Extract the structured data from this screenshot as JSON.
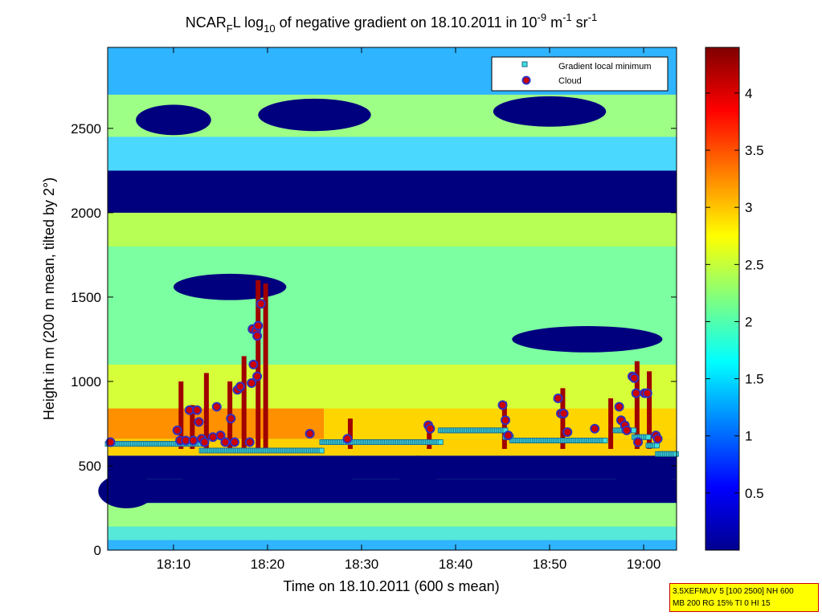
{
  "chart_data": {
    "type": "heatmap",
    "title": {
      "p1": "NCAR",
      "p1_sub": "F",
      "p2": "L log",
      "p2_sub": "10",
      "p3": " of negative gradient on 18.10.2011 in 10",
      "p3_sup": "-9",
      "p4": " m",
      "p4_sup": "-1",
      "p5": " sr",
      "p5_sup": "-1"
    },
    "xlabel": "Time on 18.10.2011 (600 s mean)",
    "ylabel": "Height in m (200 m mean, tilted by 2°)",
    "x_range_min": [
      3,
      63.5
    ],
    "y_range_m": [
      0,
      2980
    ],
    "x_tick_labels": [
      "18:10",
      "18:20",
      "18:30",
      "18:40",
      "18:50",
      "19:00"
    ],
    "x_tick_values_min": [
      10,
      20,
      30,
      40,
      50,
      60
    ],
    "y_ticks": [
      0,
      500,
      1000,
      1500,
      2000,
      2500
    ],
    "colorbar": {
      "range": [
        0,
        4.4
      ],
      "ticks": [
        0.5,
        1,
        1.5,
        2,
        2.5,
        3,
        3.5,
        4
      ],
      "tick_labels": [
        "0.5",
        "1",
        "1.5",
        "2",
        "2.5",
        "3",
        "3.5",
        "4"
      ],
      "colormap": "jet"
    },
    "legend": {
      "placement": "top-right",
      "entries": [
        {
          "label": "Gradient local minimum",
          "marker": "square",
          "color": "#40e0e0"
        },
        {
          "label": "Cloud",
          "marker": "circle",
          "color": "#cc0000",
          "edge": "#3030c0"
        }
      ]
    },
    "gradient_local_minimum_segments": [
      {
        "t0": 3.0,
        "t1": 13.0,
        "h": 630
      },
      {
        "t0": 13.0,
        "t1": 25.8,
        "h": 590
      },
      {
        "t0": 25.8,
        "t1": 38.4,
        "h": 640
      },
      {
        "t0": 38.4,
        "t1": 45.3,
        "h": 710
      },
      {
        "t0": 45.3,
        "t1": 46.0,
        "h": 670
      },
      {
        "t0": 46.0,
        "t1": 56.0,
        "h": 650
      },
      {
        "t0": 57.0,
        "t1": 59.0,
        "h": 710
      },
      {
        "t0": 59.0,
        "t1": 60.5,
        "h": 670
      },
      {
        "t0": 60.5,
        "t1": 61.5,
        "h": 620
      },
      {
        "t0": 61.5,
        "t1": 63.5,
        "h": 570
      }
    ],
    "clouds": [
      {
        "t": 3.3,
        "h": 640
      },
      {
        "t": 10.4,
        "h": 710
      },
      {
        "t": 10.7,
        "h": 650
      },
      {
        "t": 11.3,
        "h": 650
      },
      {
        "t": 11.7,
        "h": 830
      },
      {
        "t": 12.1,
        "h": 650
      },
      {
        "t": 12.5,
        "h": 830
      },
      {
        "t": 12.7,
        "h": 760
      },
      {
        "t": 13.0,
        "h": 660
      },
      {
        "t": 13.3,
        "h": 640
      },
      {
        "t": 14.2,
        "h": 670
      },
      {
        "t": 14.6,
        "h": 850
      },
      {
        "t": 15.0,
        "h": 680
      },
      {
        "t": 15.5,
        "h": 640
      },
      {
        "t": 16.1,
        "h": 780
      },
      {
        "t": 16.5,
        "h": 640
      },
      {
        "t": 16.8,
        "h": 950
      },
      {
        "t": 17.1,
        "h": 970
      },
      {
        "t": 18.1,
        "h": 640
      },
      {
        "t": 18.3,
        "h": 990
      },
      {
        "t": 18.4,
        "h": 1310
      },
      {
        "t": 18.5,
        "h": 1100
      },
      {
        "t": 18.8,
        "h": 1300
      },
      {
        "t": 18.9,
        "h": 1030
      },
      {
        "t": 18.9,
        "h": 1270
      },
      {
        "t": 19.0,
        "h": 1330
      },
      {
        "t": 19.3,
        "h": 1460
      },
      {
        "t": 24.5,
        "h": 690
      },
      {
        "t": 28.5,
        "h": 660
      },
      {
        "t": 37.1,
        "h": 740
      },
      {
        "t": 37.3,
        "h": 720
      },
      {
        "t": 45.0,
        "h": 860
      },
      {
        "t": 45.3,
        "h": 770
      },
      {
        "t": 45.6,
        "h": 680
      },
      {
        "t": 50.9,
        "h": 900
      },
      {
        "t": 51.2,
        "h": 810
      },
      {
        "t": 51.5,
        "h": 810
      },
      {
        "t": 51.9,
        "h": 700
      },
      {
        "t": 54.8,
        "h": 720
      },
      {
        "t": 57.4,
        "h": 850
      },
      {
        "t": 57.6,
        "h": 770
      },
      {
        "t": 58.0,
        "h": 740
      },
      {
        "t": 58.2,
        "h": 710
      },
      {
        "t": 58.8,
        "h": 1030
      },
      {
        "t": 59.0,
        "h": 1020
      },
      {
        "t": 59.2,
        "h": 930
      },
      {
        "t": 59.4,
        "h": 640
      },
      {
        "t": 60.1,
        "h": 930
      },
      {
        "t": 60.4,
        "h": 930
      },
      {
        "t": 61.3,
        "h": 680
      },
      {
        "t": 61.5,
        "h": 660
      }
    ]
  },
  "info_box": {
    "line1": "3.5XEFMUV 5 [100 2500] NH 600",
    "line2": "MB 200 RG 15% TI 0 HI 15",
    "bg": "#ffff00",
    "border": "#cc0000"
  }
}
